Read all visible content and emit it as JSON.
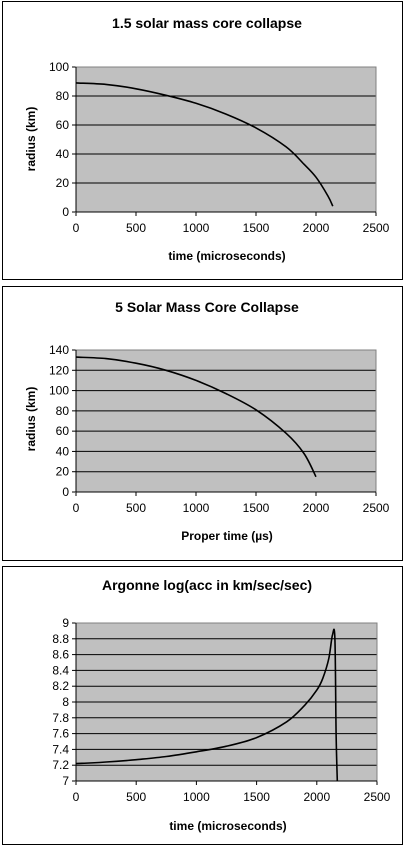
{
  "chart_data": [
    {
      "type": "line",
      "title": "1.5 solar mass core collapse",
      "xlabel": "time (microseconds)",
      "ylabel": "radius (km)",
      "xlim": [
        0,
        2500
      ],
      "ylim": [
        0,
        100
      ],
      "xticks": [
        "0",
        "500",
        "1000",
        "1500",
        "2000",
        "2500"
      ],
      "yticks": [
        "0",
        "20",
        "40",
        "60",
        "80",
        "100"
      ],
      "grid": true,
      "legend": "none",
      "plot_background": "#c0c0c0",
      "line_color": "#000000",
      "series": [
        {
          "x": [
            0,
            250,
            500,
            750,
            1000,
            1250,
            1500,
            1750,
            1900,
            2000,
            2100,
            2140
          ],
          "y": [
            89,
            88,
            85,
            80.5,
            75,
            67.5,
            58,
            45,
            33,
            24,
            11,
            4
          ]
        }
      ]
    },
    {
      "type": "line",
      "title": "5 Solar Mass Core Collapse",
      "xlabel": "Proper time (µs)",
      "ylabel": "radius (km)",
      "xlim": [
        0,
        2500
      ],
      "ylim": [
        0,
        140
      ],
      "xticks": [
        "0",
        "500",
        "1000",
        "1500",
        "2000",
        "2500"
      ],
      "yticks": [
        "0",
        "20",
        "40",
        "60",
        "80",
        "100",
        "120",
        "140"
      ],
      "grid": true,
      "legend": "none",
      "plot_background": "#c0c0c0",
      "line_color": "#000000",
      "series": [
        {
          "x": [
            0,
            250,
            500,
            750,
            1000,
            1250,
            1500,
            1750,
            1900,
            2000
          ],
          "y": [
            133,
            131.5,
            127,
            120,
            110,
            97,
            81,
            58,
            38,
            15
          ]
        }
      ]
    },
    {
      "type": "line",
      "title": "Argonne log(acc in km/sec/sec)",
      "xlabel": "time (microseconds)",
      "ylabel": "",
      "xlim": [
        0,
        2500
      ],
      "ylim": [
        7,
        9
      ],
      "xticks": [
        "0",
        "500",
        "1000",
        "1500",
        "2000",
        "2500"
      ],
      "yticks": [
        "7",
        "7.2",
        "7.4",
        "7.6",
        "7.8",
        "8",
        "8.2",
        "8.4",
        "8.6",
        "8.8",
        "9"
      ],
      "grid": true,
      "legend": "none",
      "plot_background": "#c0c0c0",
      "line_color": "#000000",
      "series": [
        {
          "x": [
            0,
            250,
            500,
            750,
            1000,
            1250,
            1500,
            1750,
            1900,
            2000,
            2050,
            2100,
            2130,
            2150,
            2160,
            2170
          ],
          "y": [
            7.22,
            7.24,
            7.27,
            7.31,
            7.37,
            7.44,
            7.55,
            7.75,
            7.96,
            8.15,
            8.3,
            8.55,
            8.85,
            8.8,
            7.6,
            7.0
          ]
        }
      ]
    }
  ]
}
